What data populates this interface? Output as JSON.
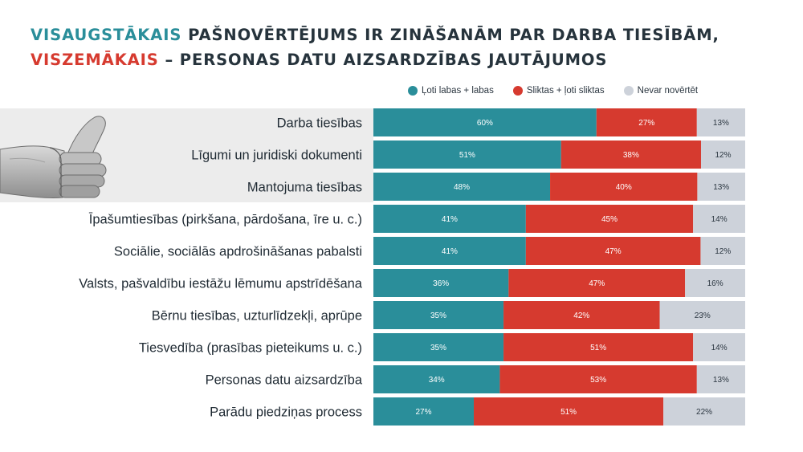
{
  "title": {
    "line1_highlight": "VISAUGSTĀKAIS",
    "line1_rest": " PAŠNOVĒRTĒJUMS IR ZINĀŠANĀM PAR DARBA TIESĪBĀM,",
    "line2_highlight": "VISZEMĀKAIS",
    "line2_rest": " – PERSONAS DATU AIZSARDZĪBAS JAUTĀJUMOS"
  },
  "colors": {
    "teal": "#2a8e9a",
    "red": "#d63a2f",
    "grey": "#cdd2da",
    "highlight_band": "#ececec"
  },
  "icons": {
    "illustration": "thumbs-up-hand-icon"
  },
  "chart_data": {
    "type": "bar",
    "orientation": "horizontal",
    "stacked": true,
    "percent": true,
    "legend_position": "top-right",
    "categories": [
      "Darba tiesības",
      "Līgumi un juridiski dokumenti",
      "Mantojuma tiesības",
      "Īpašumtiesības (pirkšana, pārdošana, īre u. c.)",
      "Sociālie, sociālās apdrošināšanas pabalsti",
      "Valsts, pašvaldību iestāžu lēmumu apstrīdēšana",
      "Bērnu tiesības, uzturlīdzekļi, aprūpe",
      "Tiesvedība (prasības pieteikums u. c.)",
      "Personas datu aizsardzība",
      "Parādu piedziņas process"
    ],
    "series": [
      {
        "name": "Ļoti labas + labas",
        "color": "#2a8e9a",
        "values": [
          60,
          51,
          48,
          41,
          41,
          36,
          35,
          35,
          34,
          27
        ]
      },
      {
        "name": "Sliktas + ļoti sliktas",
        "color": "#d63a2f",
        "values": [
          27,
          38,
          40,
          45,
          47,
          47,
          42,
          51,
          53,
          51
        ]
      },
      {
        "name": "Nevar novērtēt",
        "color": "#cdd2da",
        "values": [
          13,
          12,
          13,
          14,
          12,
          16,
          23,
          14,
          13,
          22
        ]
      }
    ],
    "highlighted_categories": [
      0,
      1,
      2
    ]
  }
}
